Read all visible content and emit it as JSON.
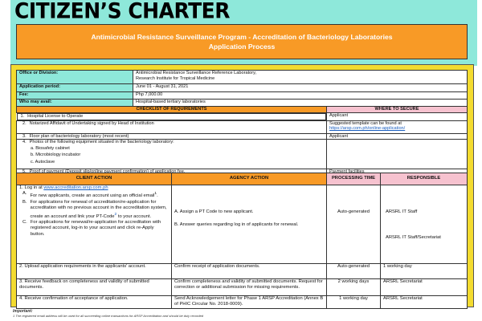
{
  "header": {
    "title": "CITIZEN’S CHARTER",
    "banner_line1": "Antimicrobial Resistance Surveillance Program - Accreditation of Bacteriology Laboratories",
    "banner_line2": "Application Process"
  },
  "info": [
    {
      "label": "Office or Division:",
      "value1": "Antimicrobial Resistance Surveillance Reference Laboratory,",
      "value2": "Research Institute for Tropical Medicine"
    },
    {
      "label": "Application period:",
      "value1": "June 01 - August 31, 2021"
    },
    {
      "label": "Fee:",
      "value1": "Php 7,000.00"
    },
    {
      "label": "Who may avail:",
      "value1": "Hospital-based tertiary laboratories"
    }
  ],
  "checklist": {
    "header": "CHECKLIST OF REQUIREMENTS",
    "where_header": "WHERE TO SECURE",
    "items": [
      {
        "num": "1.",
        "text": "Hospital License to Operate",
        "where": "Applicant"
      },
      {
        "num": "2.",
        "text": "Notarized Affidavit of Undertaking signed by Head of Institution",
        "where": "Suggested template can be found at",
        "link": "https://arsp.com.ph/online-application/"
      },
      {
        "num": "3.",
        "text": "Floor plan of bacteriology laboratory (most recent)",
        "where": "Applicant"
      },
      {
        "num": "4.",
        "text": "Photos of the following equipment situated in the bacteriology laboratory:",
        "subs": [
          "a. Biosafety cabinet",
          "b. Microbiology incubator",
          "c. Autoclave"
        ]
      },
      {
        "num": "5.",
        "text": "Proof of payment (Deposit slip/online payment confirmation) of application fee.",
        "where": "Payment facilities"
      }
    ]
  },
  "process": {
    "headers": [
      "CLIENT ACTION",
      "AGENCY ACTION",
      "PROCESSING TIME",
      "RESPONSIBLE"
    ],
    "step1": {
      "intro": "1. Log in at",
      "link": "www.accreditation.arsp.com.ph",
      "A": {
        "mark": "A.",
        "text": "For new applicants, create an account using an official email",
        "sup": "1",
        "end": "."
      },
      "B": {
        "mark": "B.",
        "text": "For applications for renewal of accreditation/re-application for accreditation with no previous account in the accreditation system, create an account and link your PT-Code",
        "sup": "2",
        "end": " to your account."
      },
      "C": {
        "mark": "C.",
        "text": "For applications for renewal/re-application for accreditation with registered account, log-in to your account and click re-Apply button."
      },
      "agencyA": "A. Assign a PT Code to new applicant.",
      "agencyB": "B. Answer queries regarding log in of applicants for renewal.",
      "time": "Auto-generated",
      "respA": "ARSRL IT Staff",
      "respB": "ARSRL IT Staff/Secretariat"
    },
    "steps": [
      {
        "client": "2. Upload application requirements in the applicants' account.",
        "agency": "Confirm receipt of application documents.",
        "time": "Auto-generated",
        "resp": "1 working day"
      },
      {
        "client": "3. Receive feedback on completeness and validity of submitted documents.",
        "agency": "Confirm completeness and validity of submitted documents. Request for correction or additional submission for missing requirements.",
        "time": "2 working days",
        "resp": "ARSRL Secretariat"
      },
      {
        "client": "4. Receive confirmation of acceptance of application.",
        "agency": "Send Acknowledgement letter for Phase 1 ARSP Accreditation (Annex B of PHIC Circular No. 2018-0009).",
        "time": "1 working day",
        "resp": "ARSRL Secretariat"
      }
    ]
  },
  "footer": {
    "title": "Important:",
    "note1": "1 The registered email address will be used for all succeeding online transactions for ARSP Accreditation and should be duly recorded"
  }
}
